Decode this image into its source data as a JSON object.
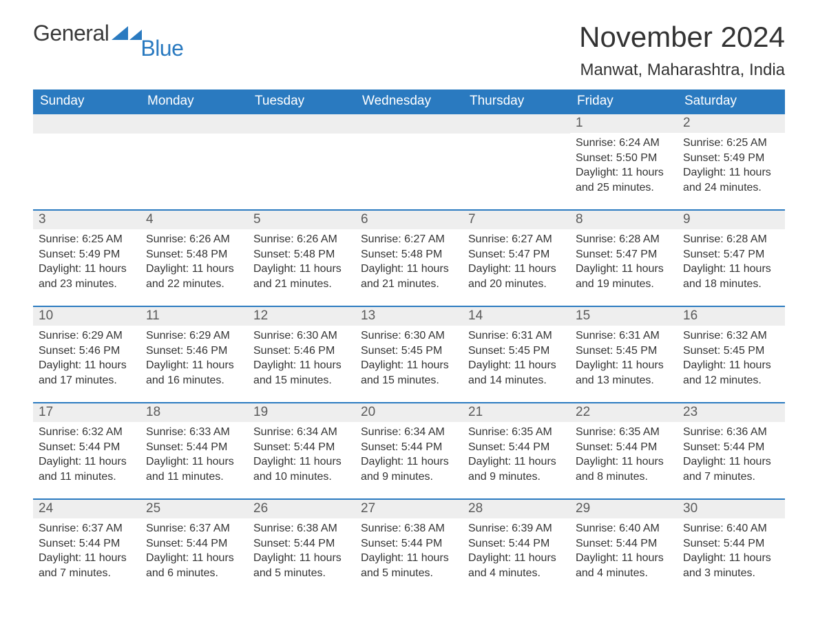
{
  "logo": {
    "text1": "General",
    "text2": "Blue",
    "triangle_color": "#2a7ac0"
  },
  "title": "November 2024",
  "location": "Manwat, Maharashtra, India",
  "colors": {
    "header_bg": "#2a7ac0",
    "header_text": "#ffffff",
    "daynum_bg": "#eeeeee",
    "daynum_text": "#5a5a5a",
    "body_text": "#333333",
    "row_border": "#2a7ac0",
    "page_bg": "#ffffff"
  },
  "typography": {
    "title_fontsize": 42,
    "location_fontsize": 24,
    "header_fontsize": 19,
    "daynum_fontsize": 19,
    "body_fontsize": 16,
    "logo_fontsize": 32
  },
  "layout": {
    "columns": 7,
    "rows": 5,
    "first_day_column_index": 5
  },
  "weekdays": [
    "Sunday",
    "Monday",
    "Tuesday",
    "Wednesday",
    "Thursday",
    "Friday",
    "Saturday"
  ],
  "days": [
    {
      "n": 1,
      "sunrise": "6:24 AM",
      "sunset": "5:50 PM",
      "daylight": "11 hours and 25 minutes."
    },
    {
      "n": 2,
      "sunrise": "6:25 AM",
      "sunset": "5:49 PM",
      "daylight": "11 hours and 24 minutes."
    },
    {
      "n": 3,
      "sunrise": "6:25 AM",
      "sunset": "5:49 PM",
      "daylight": "11 hours and 23 minutes."
    },
    {
      "n": 4,
      "sunrise": "6:26 AM",
      "sunset": "5:48 PM",
      "daylight": "11 hours and 22 minutes."
    },
    {
      "n": 5,
      "sunrise": "6:26 AM",
      "sunset": "5:48 PM",
      "daylight": "11 hours and 21 minutes."
    },
    {
      "n": 6,
      "sunrise": "6:27 AM",
      "sunset": "5:48 PM",
      "daylight": "11 hours and 21 minutes."
    },
    {
      "n": 7,
      "sunrise": "6:27 AM",
      "sunset": "5:47 PM",
      "daylight": "11 hours and 20 minutes."
    },
    {
      "n": 8,
      "sunrise": "6:28 AM",
      "sunset": "5:47 PM",
      "daylight": "11 hours and 19 minutes."
    },
    {
      "n": 9,
      "sunrise": "6:28 AM",
      "sunset": "5:47 PM",
      "daylight": "11 hours and 18 minutes."
    },
    {
      "n": 10,
      "sunrise": "6:29 AM",
      "sunset": "5:46 PM",
      "daylight": "11 hours and 17 minutes."
    },
    {
      "n": 11,
      "sunrise": "6:29 AM",
      "sunset": "5:46 PM",
      "daylight": "11 hours and 16 minutes."
    },
    {
      "n": 12,
      "sunrise": "6:30 AM",
      "sunset": "5:46 PM",
      "daylight": "11 hours and 15 minutes."
    },
    {
      "n": 13,
      "sunrise": "6:30 AM",
      "sunset": "5:45 PM",
      "daylight": "11 hours and 15 minutes."
    },
    {
      "n": 14,
      "sunrise": "6:31 AM",
      "sunset": "5:45 PM",
      "daylight": "11 hours and 14 minutes."
    },
    {
      "n": 15,
      "sunrise": "6:31 AM",
      "sunset": "5:45 PM",
      "daylight": "11 hours and 13 minutes."
    },
    {
      "n": 16,
      "sunrise": "6:32 AM",
      "sunset": "5:45 PM",
      "daylight": "11 hours and 12 minutes."
    },
    {
      "n": 17,
      "sunrise": "6:32 AM",
      "sunset": "5:44 PM",
      "daylight": "11 hours and 11 minutes."
    },
    {
      "n": 18,
      "sunrise": "6:33 AM",
      "sunset": "5:44 PM",
      "daylight": "11 hours and 11 minutes."
    },
    {
      "n": 19,
      "sunrise": "6:34 AM",
      "sunset": "5:44 PM",
      "daylight": "11 hours and 10 minutes."
    },
    {
      "n": 20,
      "sunrise": "6:34 AM",
      "sunset": "5:44 PM",
      "daylight": "11 hours and 9 minutes."
    },
    {
      "n": 21,
      "sunrise": "6:35 AM",
      "sunset": "5:44 PM",
      "daylight": "11 hours and 9 minutes."
    },
    {
      "n": 22,
      "sunrise": "6:35 AM",
      "sunset": "5:44 PM",
      "daylight": "11 hours and 8 minutes."
    },
    {
      "n": 23,
      "sunrise": "6:36 AM",
      "sunset": "5:44 PM",
      "daylight": "11 hours and 7 minutes."
    },
    {
      "n": 24,
      "sunrise": "6:37 AM",
      "sunset": "5:44 PM",
      "daylight": "11 hours and 7 minutes."
    },
    {
      "n": 25,
      "sunrise": "6:37 AM",
      "sunset": "5:44 PM",
      "daylight": "11 hours and 6 minutes."
    },
    {
      "n": 26,
      "sunrise": "6:38 AM",
      "sunset": "5:44 PM",
      "daylight": "11 hours and 5 minutes."
    },
    {
      "n": 27,
      "sunrise": "6:38 AM",
      "sunset": "5:44 PM",
      "daylight": "11 hours and 5 minutes."
    },
    {
      "n": 28,
      "sunrise": "6:39 AM",
      "sunset": "5:44 PM",
      "daylight": "11 hours and 4 minutes."
    },
    {
      "n": 29,
      "sunrise": "6:40 AM",
      "sunset": "5:44 PM",
      "daylight": "11 hours and 4 minutes."
    },
    {
      "n": 30,
      "sunrise": "6:40 AM",
      "sunset": "5:44 PM",
      "daylight": "11 hours and 3 minutes."
    }
  ],
  "labels": {
    "sunrise": "Sunrise:",
    "sunset": "Sunset:",
    "daylight": "Daylight:"
  }
}
